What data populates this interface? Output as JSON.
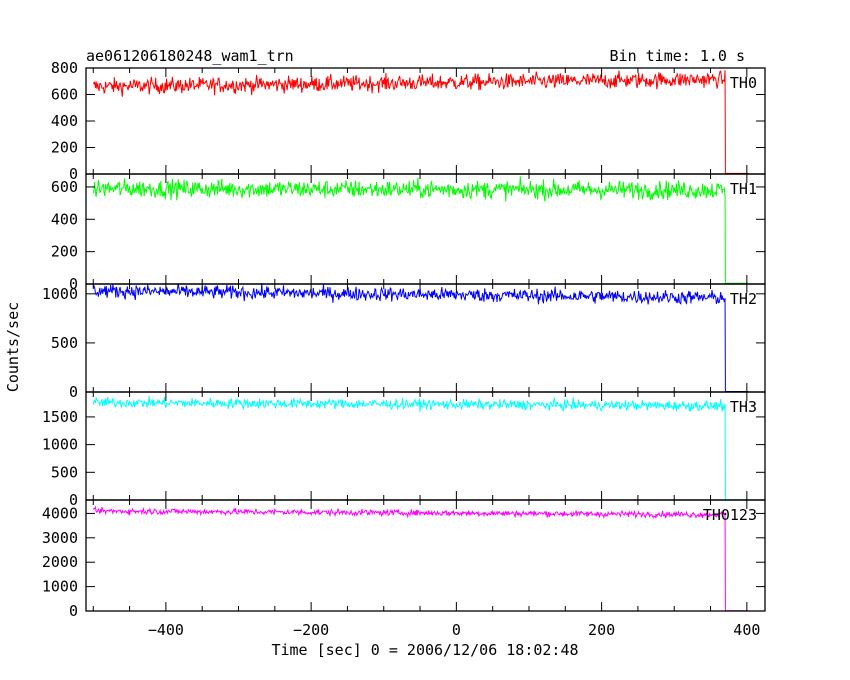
{
  "header": {
    "title": "ae061206180248_wam1_trn",
    "bin_time": "Bin time: 1.0 s"
  },
  "chart_data": {
    "type": "line",
    "xlabel": "Time [sec] 0 = 2006/12/06 18:02:48",
    "ylabel": "Counts/sec",
    "xlim": [
      -510,
      425
    ],
    "x_ticks": [
      -400,
      -200,
      0,
      200,
      400
    ],
    "x_tick_labels": [
      "−400",
      "−200",
      "0",
      "200",
      "400"
    ],
    "bin_time_sec": 1.0,
    "panels": [
      {
        "name": "TH0",
        "color": "#ff0000",
        "ylim": [
          0,
          800
        ],
        "y_ticks": [
          0,
          200,
          400,
          600,
          800
        ],
        "x_start": -500,
        "x_drop": 370,
        "x_end": 402,
        "level_start": 660,
        "level_end": 715,
        "noise": 30,
        "after": 5
      },
      {
        "name": "TH1",
        "color": "#00ff00",
        "ylim": [
          0,
          680
        ],
        "y_ticks": [
          0,
          200,
          400,
          600
        ],
        "x_start": -500,
        "x_drop": 370,
        "x_end": 402,
        "level_start": 590,
        "level_end": 580,
        "noise": 28,
        "after": 5
      },
      {
        "name": "TH2",
        "color": "#0000ff",
        "ylim": [
          0,
          1100
        ],
        "y_ticks": [
          0,
          500,
          1000
        ],
        "x_start": -500,
        "x_drop": 370,
        "x_end": 402,
        "level_start": 1030,
        "level_end": 960,
        "noise": 35,
        "after": 5
      },
      {
        "name": "TH3",
        "color": "#00ffff",
        "ylim": [
          0,
          1950
        ],
        "y_ticks": [
          0,
          500,
          1000,
          1500
        ],
        "x_start": -500,
        "x_drop": 370,
        "x_end": 402,
        "level_start": 1760,
        "level_end": 1700,
        "noise": 45,
        "after": 5
      },
      {
        "name": "TH0123",
        "color": "#ff00ff",
        "ylim": [
          0,
          4550
        ],
        "y_ticks": [
          0,
          1000,
          2000,
          3000,
          4000
        ],
        "x_start": -500,
        "x_drop": 370,
        "x_end": 402,
        "level_start": 4100,
        "level_end": 3950,
        "noise": 60,
        "after": 10
      }
    ]
  }
}
